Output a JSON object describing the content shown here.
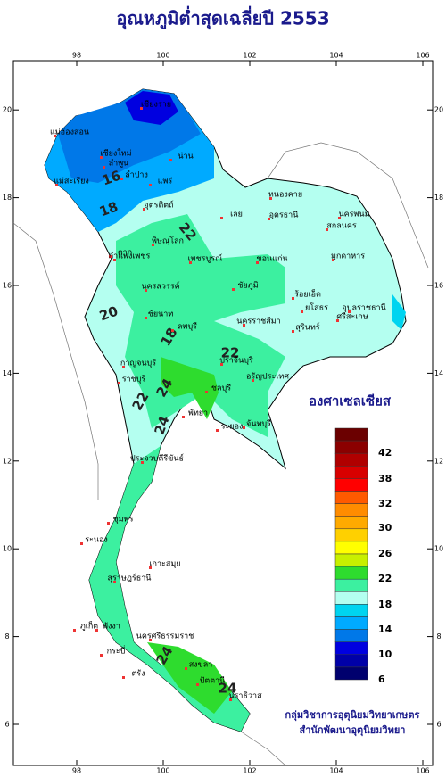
{
  "title": "อุณหภูมิต่ำสุดเฉลี่ยปี 2553",
  "map": {
    "xticks": [
      98,
      100,
      102,
      104,
      106
    ],
    "yticks": [
      6,
      8,
      10,
      12,
      14,
      16,
      18,
      20
    ]
  },
  "legend": {
    "title": "องศาเซลเซียส",
    "labels": [
      "42",
      "38",
      "32",
      "30",
      "26",
      "22",
      "18",
      "14",
      "10",
      "6"
    ],
    "colors": [
      "#6b0000",
      "#8b0000",
      "#b00000",
      "#d80000",
      "#ff0000",
      "#ff5a00",
      "#ff8c00",
      "#ffaa00",
      "#ffd000",
      "#ffff00",
      "#c8f000",
      "#2edc2e",
      "#3cf0a0",
      "#b4fff0",
      "#00d4f0",
      "#00aaff",
      "#0078e8",
      "#0000e0",
      "#0000a8",
      "#00006e"
    ]
  },
  "contour_labels": [
    "16",
    "18",
    "22",
    "20",
    "18",
    "22",
    "22",
    "24",
    "24",
    "24",
    "24"
  ],
  "places": [
    "เชียงราย",
    "แม่ฮ่องสอน",
    "เชียงใหม่",
    "ลำพูน",
    "น่าน",
    "ลำปาง",
    "แพร่",
    "แม่สะเรียง",
    "หนองคาย",
    "อุดรธานี",
    "นครพนม",
    "สกลนคร",
    "มุกดาหาร",
    "อุตรดิตถ์",
    "เลย",
    "พิษณุโลก",
    "ตาก",
    "เพชรบูรณ์",
    "ขอนแก่น",
    "กำแพงเพชร",
    "นครสวรรค์",
    "ชัยภูมิ",
    "ร้อยเอ็ด",
    "อุบลราชธานี",
    "ยโสธร",
    "ชัยนาท",
    "นครราชสีมา",
    "สุรินทร์",
    "ศรีสะเกษ",
    "ลพบุรี",
    "กาญจนบุรี",
    "ปราจีนบุรี",
    "อรัญประเทศ",
    "ราชบุรี",
    "ชลบุรี",
    "ระยอง",
    "พัทยา",
    "จันทบุรี",
    "ประจวบคีรีขันธ์",
    "ชุมพร",
    "ระนอง",
    "เกาะสมุย",
    "สุราษฎร์ธานี",
    "ภูเก็ต",
    "พังงา",
    "นครศรีธรรมราช",
    "กระบี่",
    "ตรัง",
    "สงขลา",
    "ปัตตานี",
    "นราธิวาส"
  ],
  "credits": [
    "กลุ่มวิชาการอุตุนิยมวิทยาเกษตร",
    "สำนักพัฒนาอุตุนิยมวิทยา"
  ]
}
